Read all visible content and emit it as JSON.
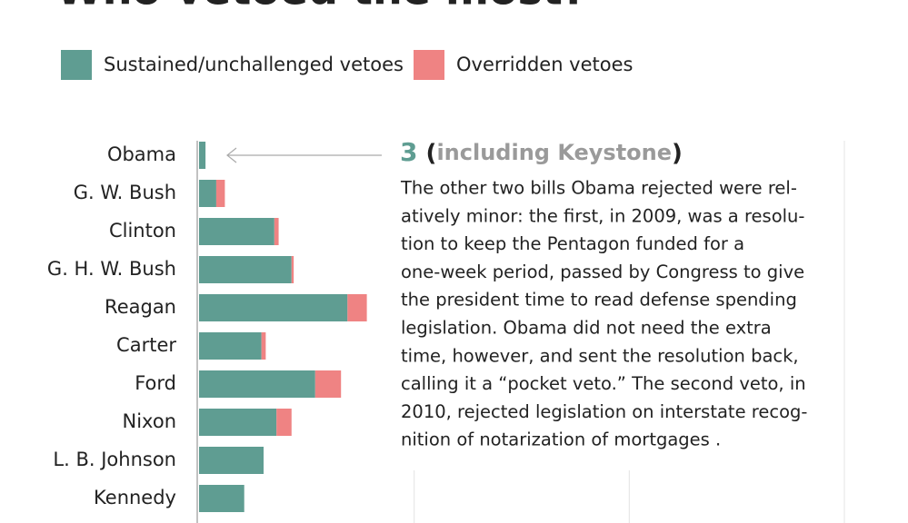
{
  "chart_data": {
    "type": "stacked-barh",
    "title": "Who vetoed the most?",
    "categories": [
      "Obama",
      "G. W. Bush",
      "Clinton",
      "G. H. W. Bush",
      "Reagan",
      "Carter",
      "Ford",
      "Nixon",
      "L. B. Johnson",
      "Kennedy"
    ],
    "series": [
      {
        "name": "Sustained/unchallenged vetoes",
        "color": "#5f9d92",
        "values": [
          3,
          8,
          35,
          43,
          69,
          29,
          54,
          36,
          30,
          21
        ]
      },
      {
        "name": "Overridden vetoes",
        "color": "#ef8383",
        "values": [
          0,
          4,
          2,
          1,
          9,
          2,
          12,
          7,
          0,
          0
        ]
      }
    ],
    "xlim": [
      0,
      300
    ],
    "xticks": [
      100,
      200,
      300
    ],
    "grid": true,
    "annotation": {
      "title_parts": [
        "(",
        "including Keystone",
        ")"
      ],
      "lines": [
        "The other two bills Obama rejected were rel-",
        "atively minor: the first, in 2009, was a resolu-",
        "tion to keep the Pentagon funded for a",
        "one-week period, passed by Congress to give",
        "the president time to read defense spending",
        "legislation. Obama did not need the extra",
        "time, however, and sent the resolution back,",
        "calling it a “pocket veto.” The second veto, in",
        "2010, rejected legislation on interstate recog-",
        "nition of notarization of mortgages ."
      ]
    }
  }
}
